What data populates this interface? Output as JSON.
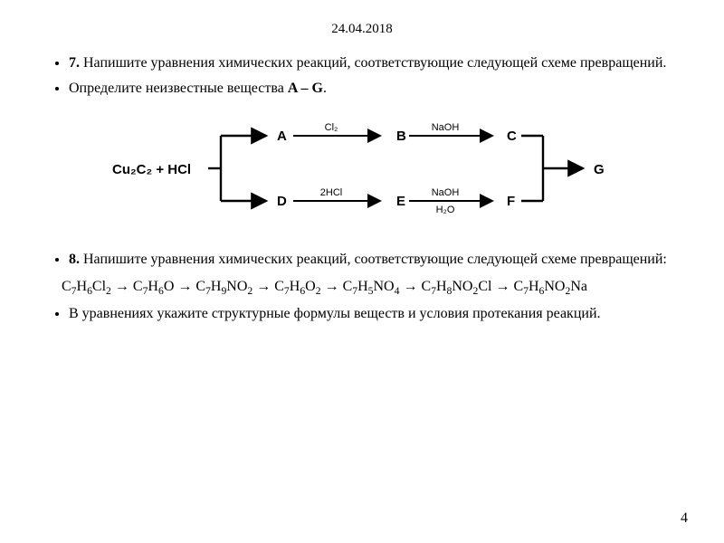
{
  "date": "24.04.2018",
  "task7": {
    "num": "7.",
    "text1": " Напишите уравнения химических реакций, соответствующие следующей схеме превращений.",
    "text2": "Определите неизвестные вещества ",
    "range": "A – G",
    "text2_end": "."
  },
  "diagram": {
    "start_label": "Cu₂C₂ + HCl",
    "nodes": {
      "A": "A",
      "B": "B",
      "C": "C",
      "D": "D",
      "E": "E",
      "F": "F",
      "G": "G"
    },
    "edge_labels": {
      "AB": "Cl₂",
      "BC": "NaOH",
      "DE": "2HCl",
      "EF_top": "NaOH",
      "EF_bot": "H₂O"
    },
    "colors": {
      "stroke": "#000000"
    }
  },
  "task8": {
    "num": "8.",
    "text": " Напишите уравнения химических реакций, соответствующие следующей схеме превращений:"
  },
  "chain_html": "C<sub>7</sub>H<sub>6</sub>Cl<sub>2</sub> → C<sub>7</sub>H<sub>6</sub>O → C<sub>7</sub>H<sub>9</sub>NO<sub>2</sub> → C<sub>7</sub>H<sub>6</sub>O<sub>2</sub> → C<sub>7</sub>H<sub>5</sub>NO<sub>4</sub> → C<sub>7</sub>H<sub>8</sub>NO<sub>2</sub>Cl → C<sub>7</sub>H<sub>6</sub>NO<sub>2</sub>Na",
  "task8b": "В уравнениях укажите структурные формулы веществ и условия протекания реакций.",
  "page_number": "4"
}
